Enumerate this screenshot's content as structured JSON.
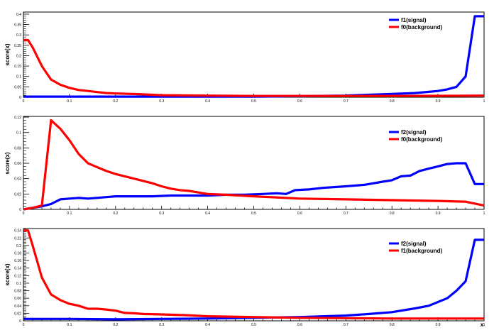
{
  "chart_data": [
    {
      "type": "line",
      "ylabel": "score(x)",
      "xlabel": "",
      "xlim": [
        0,
        1
      ],
      "ylim": [
        0,
        0.41
      ],
      "xticks": [
        "0",
        "0.1",
        "0.2",
        "0.3",
        "0.4",
        "0.5",
        "0.6",
        "0.7",
        "0.8",
        "0.9",
        "1"
      ],
      "xtick_values": [
        0,
        0.1,
        0.2,
        0.3,
        0.4,
        0.5,
        0.6,
        0.7,
        0.8,
        0.9,
        1
      ],
      "yticks": [
        "0",
        "0.05",
        "0.1",
        "0.15",
        "0.2",
        "0.25",
        "0.3",
        "0.35",
        "0.4"
      ],
      "ytick_values": [
        0,
        0.05,
        0.1,
        0.15,
        0.2,
        0.25,
        0.3,
        0.35,
        0.4
      ],
      "legend_position": "top-right",
      "series": [
        {
          "name": "f1(signal)",
          "color": "#0000ff",
          "x": [
            0,
            0.1,
            0.2,
            0.3,
            0.4,
            0.5,
            0.6,
            0.7,
            0.75,
            0.8,
            0.85,
            0.9,
            0.92,
            0.94,
            0.96,
            0.98,
            1.0
          ],
          "y": [
            0.003,
            0.003,
            0.003,
            0.003,
            0.003,
            0.003,
            0.005,
            0.008,
            0.012,
            0.016,
            0.02,
            0.03,
            0.038,
            0.05,
            0.1,
            0.39,
            0.39
          ]
        },
        {
          "name": "f0(background)",
          "color": "#ff0000",
          "x": [
            0,
            0.01,
            0.02,
            0.04,
            0.06,
            0.08,
            0.1,
            0.12,
            0.14,
            0.16,
            0.18,
            0.2,
            0.25,
            0.3,
            0.4,
            0.5,
            0.6,
            0.7,
            0.8,
            0.9,
            1.0
          ],
          "y": [
            0.275,
            0.275,
            0.24,
            0.15,
            0.085,
            0.06,
            0.045,
            0.035,
            0.03,
            0.025,
            0.02,
            0.018,
            0.015,
            0.01,
            0.008,
            0.006,
            0.006,
            0.006,
            0.006,
            0.007,
            0.008
          ]
        }
      ]
    },
    {
      "type": "line",
      "ylabel": "score(x)",
      "xlabel": "",
      "xlim": [
        0,
        1
      ],
      "ylim": [
        0,
        0.121
      ],
      "xticks": [
        "0",
        "0.1",
        "0.2",
        "0.3",
        "0.4",
        "0.5",
        "0.6",
        "0.7",
        "0.8",
        "0.9",
        "1"
      ],
      "xtick_values": [
        0,
        0.1,
        0.2,
        0.3,
        0.4,
        0.5,
        0.6,
        0.7,
        0.8,
        0.9,
        1
      ],
      "yticks": [
        "0",
        "0.02",
        "0.04",
        "0.06",
        "0.08",
        "0.1",
        "0.12"
      ],
      "ytick_values": [
        0,
        0.02,
        0.04,
        0.06,
        0.08,
        0.1,
        0.12
      ],
      "legend_position": "top-right",
      "series": [
        {
          "name": "f2(signal)",
          "color": "#0000ff",
          "x": [
            0,
            0.02,
            0.04,
            0.06,
            0.08,
            0.1,
            0.12,
            0.14,
            0.16,
            0.18,
            0.2,
            0.24,
            0.28,
            0.32,
            0.36,
            0.4,
            0.44,
            0.48,
            0.52,
            0.55,
            0.57,
            0.59,
            0.62,
            0.65,
            0.7,
            0.74,
            0.78,
            0.8,
            0.82,
            0.84,
            0.86,
            0.88,
            0.9,
            0.92,
            0.94,
            0.96,
            0.98,
            1.0
          ],
          "y": [
            0,
            0.002,
            0.004,
            0.007,
            0.013,
            0.014,
            0.015,
            0.014,
            0.015,
            0.016,
            0.017,
            0.017,
            0.017,
            0.018,
            0.018,
            0.018,
            0.019,
            0.019,
            0.02,
            0.021,
            0.02,
            0.025,
            0.026,
            0.028,
            0.03,
            0.032,
            0.036,
            0.038,
            0.043,
            0.044,
            0.05,
            0.053,
            0.056,
            0.059,
            0.06,
            0.06,
            0.033,
            0.033
          ]
        },
        {
          "name": "f0(background)",
          "color": "#ff0000",
          "x": [
            0,
            0.02,
            0.04,
            0.06,
            0.08,
            0.1,
            0.12,
            0.14,
            0.16,
            0.18,
            0.2,
            0.22,
            0.24,
            0.26,
            0.28,
            0.3,
            0.32,
            0.34,
            0.36,
            0.38,
            0.4,
            0.44,
            0.5,
            0.6,
            0.7,
            0.8,
            0.9,
            0.96,
            1.0
          ],
          "y": [
            0,
            0.002,
            0.005,
            0.116,
            0.105,
            0.09,
            0.072,
            0.06,
            0.055,
            0.05,
            0.046,
            0.043,
            0.04,
            0.037,
            0.034,
            0.03,
            0.027,
            0.025,
            0.024,
            0.022,
            0.02,
            0.019,
            0.017,
            0.014,
            0.013,
            0.012,
            0.011,
            0.01,
            0.005
          ]
        }
      ]
    },
    {
      "type": "line",
      "ylabel": "score(x)",
      "xlabel": "x",
      "xlim": [
        0,
        1
      ],
      "ylim": [
        0,
        0.245
      ],
      "xticks": [
        "0",
        "0.1",
        "0.2",
        "0.3",
        "0.4",
        "0.5",
        "0.6",
        "0.7",
        "0.8",
        "0.9",
        "1"
      ],
      "xtick_values": [
        0,
        0.1,
        0.2,
        0.3,
        0.4,
        0.5,
        0.6,
        0.7,
        0.8,
        0.9,
        1
      ],
      "yticks": [
        "0",
        "0.02",
        "0.04",
        "0.06",
        "0.08",
        "0.1",
        "0.12",
        "0.14",
        "0.16",
        "0.18",
        "0.2",
        "0.22",
        "0.24"
      ],
      "ytick_values": [
        0,
        0.02,
        0.04,
        0.06,
        0.08,
        0.1,
        0.12,
        0.14,
        0.16,
        0.18,
        0.2,
        0.22,
        0.24
      ],
      "legend_position": "top-right",
      "series": [
        {
          "name": "f2(signal)",
          "color": "#0000ff",
          "x": [
            0,
            0.1,
            0.2,
            0.3,
            0.4,
            0.5,
            0.6,
            0.7,
            0.75,
            0.8,
            0.85,
            0.88,
            0.9,
            0.92,
            0.94,
            0.96,
            0.98,
            1.0
          ],
          "y": [
            0.005,
            0.005,
            0.004,
            0.005,
            0.006,
            0.008,
            0.01,
            0.014,
            0.018,
            0.023,
            0.033,
            0.04,
            0.05,
            0.06,
            0.08,
            0.105,
            0.215,
            0.215
          ]
        },
        {
          "name": "f1(background)",
          "color": "#ff0000",
          "x": [
            0,
            0.01,
            0.02,
            0.04,
            0.06,
            0.08,
            0.1,
            0.12,
            0.14,
            0.16,
            0.18,
            0.2,
            0.22,
            0.24,
            0.26,
            0.3,
            0.35,
            0.4,
            0.5,
            0.6,
            0.7,
            0.8,
            0.9,
            1.0
          ],
          "y": [
            0.24,
            0.24,
            0.2,
            0.115,
            0.07,
            0.055,
            0.045,
            0.04,
            0.032,
            0.032,
            0.03,
            0.027,
            0.021,
            0.02,
            0.018,
            0.017,
            0.015,
            0.012,
            0.01,
            0.008,
            0.007,
            0.006,
            0.006,
            0.006
          ]
        }
      ]
    }
  ]
}
